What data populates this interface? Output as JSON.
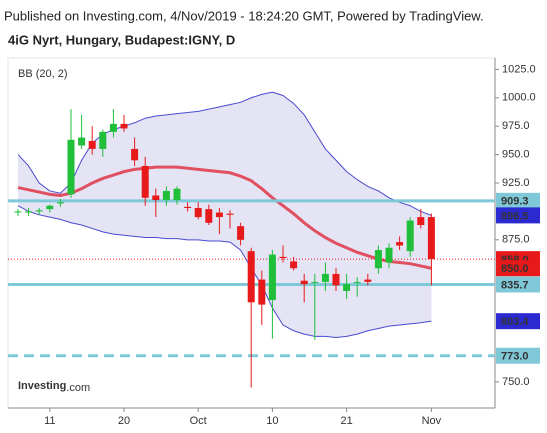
{
  "chart_data": {
    "type": "candlestick",
    "header": "Published on Investing.com, 4/Nov/2019 - 18:24:20 GMT, Powered by TradingView.",
    "title": "4iG Nyrt, Hungary, Budapest:IGNY, D",
    "logo": {
      "name": "Investing",
      "suffix": ".com"
    },
    "categories": [
      null,
      null,
      null,
      "11",
      null,
      null,
      null,
      null,
      null,
      null,
      "20",
      null,
      null,
      null,
      null,
      null,
      null,
      "Oct",
      null,
      null,
      null,
      null,
      null,
      null,
      "10",
      null,
      null,
      null,
      null,
      null,
      null,
      "21",
      null,
      null,
      null,
      null,
      null,
      null,
      null,
      "Nov"
    ],
    "open": [
      900,
      899,
      900,
      902,
      907,
      915,
      958,
      962,
      955,
      970,
      977,
      955,
      940,
      914,
      910,
      910,
      904,
      903,
      902,
      899,
      898,
      887,
      865,
      840,
      822,
      860,
      856,
      839,
      838,
      838,
      845,
      830,
      838,
      840,
      850,
      855,
      873,
      865,
      895,
      895
    ],
    "high": [
      902,
      903,
      903,
      906,
      911,
      990,
      985,
      975,
      972,
      990,
      985,
      965,
      948,
      920,
      922,
      922,
      908,
      908,
      906,
      903,
      901,
      890,
      868,
      848,
      866,
      870,
      860,
      845,
      845,
      855,
      850,
      845,
      842,
      845,
      870,
      872,
      878,
      895,
      902,
      898
    ],
    "low": [
      896,
      896,
      897,
      899,
      904,
      912,
      955,
      950,
      948,
      965,
      970,
      940,
      905,
      895,
      905,
      906,
      900,
      893,
      888,
      880,
      885,
      870,
      745,
      800,
      788,
      855,
      848,
      820,
      787,
      830,
      830,
      823,
      825,
      835,
      845,
      850,
      866,
      860,
      885,
      835
    ],
    "close": [
      900,
      900,
      901,
      905,
      908,
      963,
      965,
      955,
      970,
      977,
      973,
      945,
      912,
      910,
      918,
      920,
      903,
      895,
      890,
      895,
      897,
      875,
      820,
      818,
      862,
      859,
      850,
      836,
      838,
      845,
      835,
      836,
      838,
      838,
      866,
      868,
      870,
      892,
      888,
      858
    ],
    "up_color": "#1fbf3a",
    "down_color": "#e8191a",
    "bollinger": {
      "label": "BB (20, 2)",
      "upper": [
        950,
        940,
        925,
        918,
        916,
        925,
        945,
        960,
        968,
        972,
        975,
        978,
        982,
        984,
        985,
        986,
        987,
        988,
        990,
        992,
        994,
        996,
        1000,
        1003,
        1005,
        1002,
        995,
        985,
        970,
        955,
        945,
        935,
        928,
        922,
        918,
        912,
        908,
        905,
        900,
        896.5
      ],
      "basis": [
        921,
        919,
        917,
        915,
        914,
        916,
        920,
        925,
        929,
        932,
        935,
        937,
        938,
        939,
        939,
        939,
        938,
        937,
        936,
        935,
        934,
        931,
        927,
        920,
        912,
        905,
        898,
        890,
        883,
        877,
        872,
        868,
        864,
        861,
        858,
        856,
        855,
        854,
        852,
        850
      ],
      "lower": [
        905,
        900,
        897,
        895,
        893,
        890,
        888,
        885,
        882,
        880,
        879,
        878,
        877,
        877,
        876,
        876,
        875,
        875,
        874,
        874,
        873,
        866,
        850,
        835,
        815,
        800,
        795,
        792,
        790,
        790,
        789,
        790,
        792,
        795,
        797,
        799,
        800,
        801,
        802,
        803.4
      ],
      "band_color": "#4a4ad0",
      "basis_color": "#e05060",
      "fill": "#e4e4f4"
    },
    "levels": [
      {
        "value": 909.3,
        "label": "909.3",
        "color": "#7ec8d8",
        "style": "solid"
      },
      {
        "value": 835.7,
        "label": "835.7",
        "color": "#7ec8d8",
        "style": "solid"
      },
      {
        "value": 773,
        "label": "773.0",
        "color": "#7ec8d8",
        "style": "dashed"
      }
    ],
    "price_labels": [
      {
        "value": 896.5,
        "label": "896.5",
        "color": "#2a2ad0"
      },
      {
        "value": 858,
        "label": "858.0",
        "color": "#e8191a",
        "style": "dotted"
      },
      {
        "value": 850,
        "label": "850.0",
        "color": "#e8191a"
      },
      {
        "value": 803.4,
        "label": "803.4",
        "color": "#2a2ad0"
      }
    ],
    "ylim": [
      727,
      1035
    ],
    "yticks": [
      {
        "value": 1025,
        "label": "1025.0"
      },
      {
        "value": 1000,
        "label": "1000.0"
      },
      {
        "value": 975,
        "label": "975.0"
      },
      {
        "value": 950,
        "label": "950.0"
      },
      {
        "value": 925,
        "label": "925.0"
      },
      {
        "value": 875,
        "label": "875.0"
      },
      {
        "value": 750,
        "label": "750.0"
      }
    ]
  }
}
